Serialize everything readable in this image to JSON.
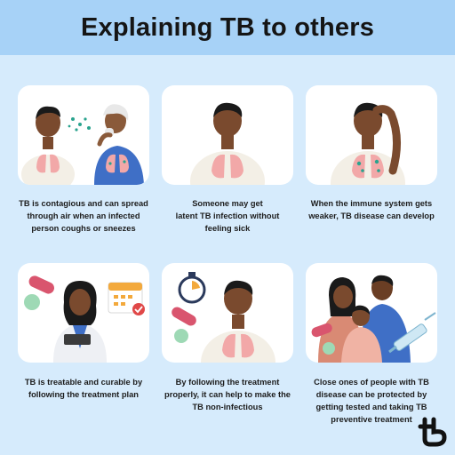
{
  "title": "Explaining TB to others",
  "panels": [
    {
      "lines": [
        "TB is contagious and can spread",
        "through air when an infected",
        "person coughs or sneezes"
      ]
    },
    {
      "lines": [
        "Someone may get",
        "latent TB infection without",
        "feeling sick"
      ]
    },
    {
      "lines": [
        "When the immune system gets",
        "weaker, TB disease can develop"
      ]
    },
    {
      "lines": [
        "TB is treatable and curable by",
        "following the treatment plan"
      ]
    },
    {
      "lines": [
        "By following the treatment",
        "properly, it can help to make the",
        "TB  non-infectious"
      ]
    },
    {
      "lines": [
        "Close ones of people with TB",
        "disease can be protected by",
        "getting tested and taking TB",
        "preventive treatment"
      ]
    }
  ],
  "colors": {
    "background": "#d6ebfc",
    "header": "#a7d2f7",
    "card": "#ffffff",
    "lung": "#f2a8a8",
    "skin": "#7a4a2e"
  },
  "icons": [
    "lungs-icon",
    "calendar-icon",
    "stopwatch-icon",
    "pill-icon",
    "syringe-icon",
    "brand-logo-icon"
  ]
}
